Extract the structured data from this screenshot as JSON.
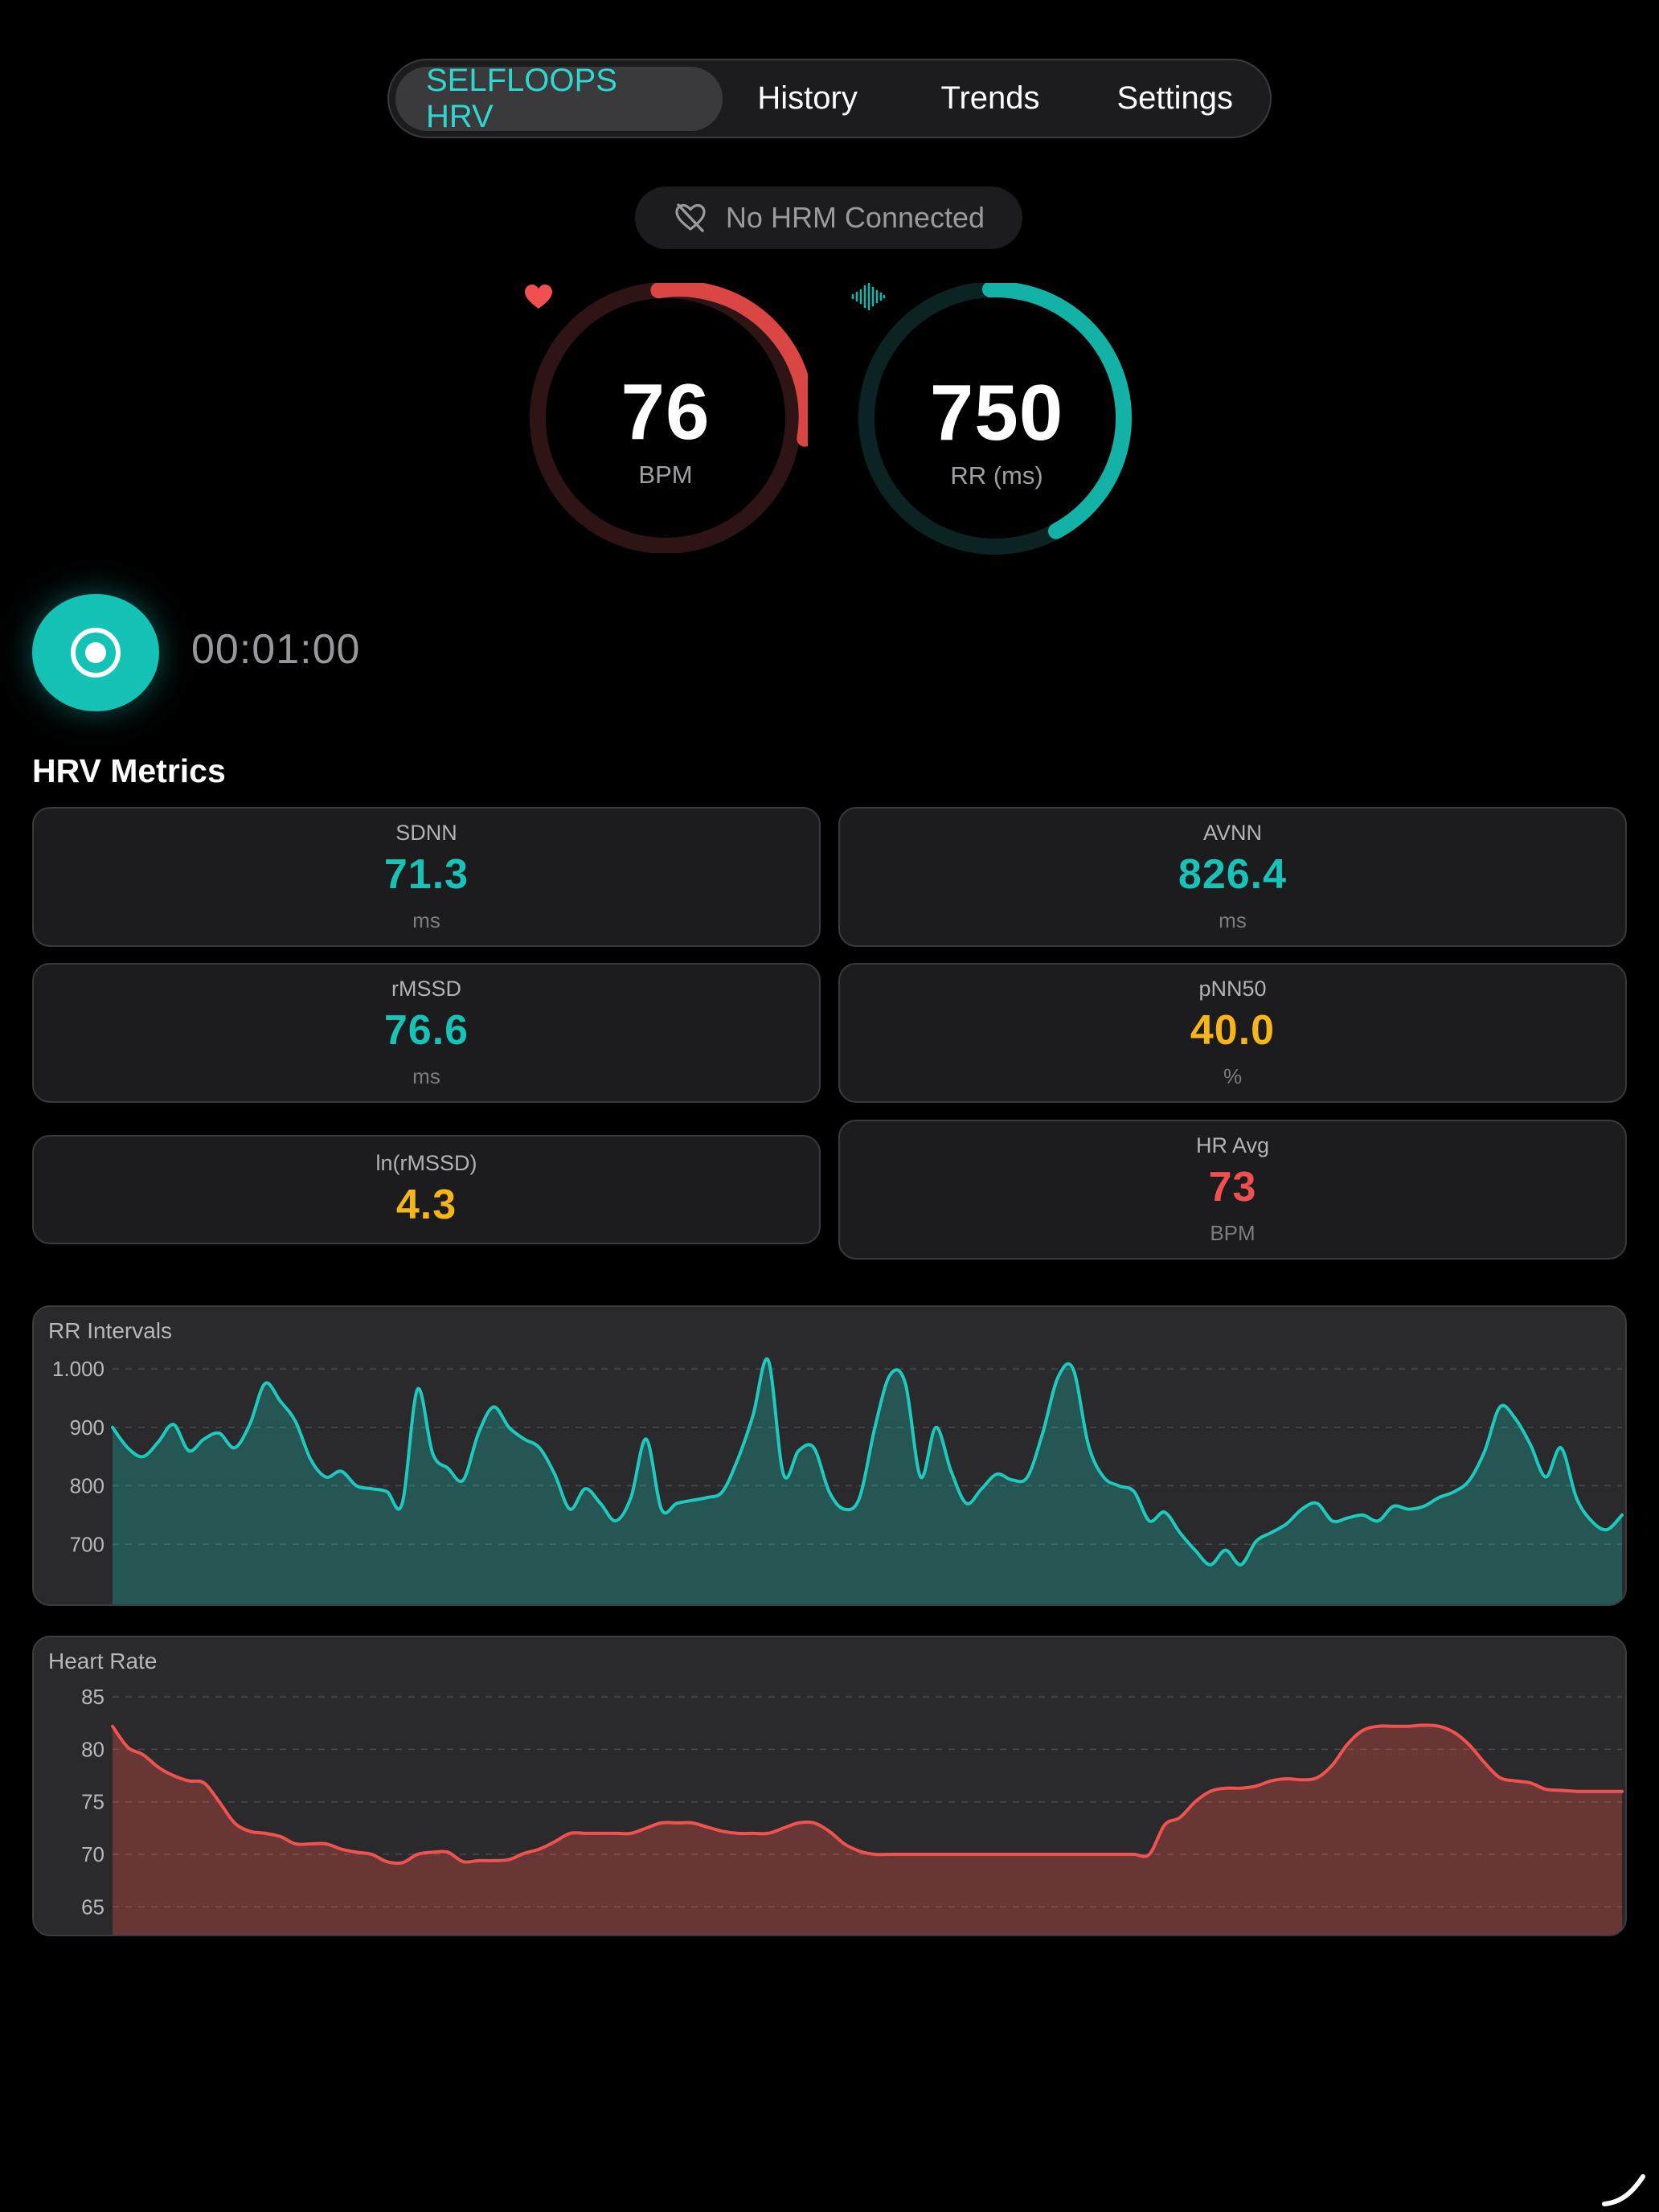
{
  "nav": {
    "tabs": [
      {
        "label": "SELFLOOPS HRV",
        "active": true
      },
      {
        "label": "History",
        "active": false
      },
      {
        "label": "Trends",
        "active": false
      },
      {
        "label": "Settings",
        "active": false
      }
    ]
  },
  "hrm_status": {
    "icon": "heart-slash-icon",
    "label": "No HRM Connected"
  },
  "gauges": {
    "bpm": {
      "icon": "heart-icon",
      "value": "76",
      "unit": "BPM",
      "color": "#f0504f"
    },
    "rr": {
      "icon": "waveform-icon",
      "value": "750",
      "unit": "RR (ms)",
      "color": "#16b5aa"
    }
  },
  "record": {
    "icon": "record-icon",
    "timer": "00:01:00"
  },
  "metrics": {
    "title": "HRV Metrics",
    "cards": [
      {
        "label": "SDNN",
        "value": "71.3",
        "unit": "ms",
        "color": "#19c2b6"
      },
      {
        "label": "AVNN",
        "value": "826.4",
        "unit": "ms",
        "color": "#19c2b6"
      },
      {
        "label": "rMSSD",
        "value": "76.6",
        "unit": "ms",
        "color": "#19c2b6"
      },
      {
        "label": "pNN50",
        "value": "40.0",
        "unit": "%",
        "color": "#f7b51c"
      },
      {
        "label": "ln(rMSSD)",
        "value": "4.3",
        "unit": "",
        "color": "#f7b51c"
      },
      {
        "label": "HR Avg",
        "value": "73",
        "unit": "BPM",
        "color": "#f0504f"
      }
    ]
  },
  "chart_data": [
    {
      "type": "area",
      "title": "RR Intervals",
      "ylim": [
        600,
        1040
      ],
      "yticks": [
        700,
        800,
        900,
        1000
      ],
      "ytick_labels": [
        "700",
        "800",
        "900",
        "1.000"
      ],
      "grid": true,
      "color": "#1ec9bd",
      "values": [
        900,
        865,
        850,
        875,
        905,
        860,
        880,
        890,
        865,
        905,
        975,
        945,
        910,
        845,
        815,
        825,
        800,
        795,
        790,
        770,
        965,
        855,
        830,
        810,
        890,
        935,
        900,
        880,
        865,
        820,
        760,
        795,
        770,
        740,
        780,
        880,
        760,
        770,
        775,
        780,
        790,
        845,
        920,
        1015,
        820,
        860,
        865,
        790,
        760,
        780,
        900,
        990,
        975,
        815,
        900,
        825,
        770,
        795,
        820,
        810,
        815,
        890,
        985,
        1000,
        870,
        815,
        800,
        790,
        740,
        755,
        720,
        690,
        665,
        690,
        665,
        705,
        720,
        735,
        760,
        770,
        740,
        745,
        750,
        740,
        765,
        760,
        765,
        780,
        790,
        810,
        860,
        935,
        915,
        870,
        815,
        865,
        780,
        740,
        725,
        750
      ]
    },
    {
      "type": "area",
      "title": "Heart Rate",
      "ylim": [
        62.5,
        87
      ],
      "yticks": [
        65,
        70,
        75,
        80,
        85
      ],
      "ytick_labels": [
        "65",
        "70",
        "75",
        "80",
        "85"
      ],
      "grid": true,
      "color": "#f0524f",
      "values": [
        82.2,
        80.2,
        79.5,
        78.3,
        77.5,
        77,
        76.8,
        75,
        73,
        72.2,
        72,
        71.7,
        71,
        71,
        71,
        70.5,
        70.2,
        70,
        69.3,
        69.2,
        70,
        70.2,
        70.2,
        69.3,
        69.4,
        69.4,
        69.5,
        70.1,
        70.5,
        71.2,
        72,
        72,
        72,
        72,
        72,
        72.5,
        73,
        73,
        73,
        72.6,
        72.2,
        72,
        72,
        72,
        72.5,
        73,
        73,
        72.2,
        71,
        70.3,
        70,
        70,
        70,
        70,
        70,
        70,
        70,
        70,
        70,
        70,
        70,
        70,
        70,
        70,
        70,
        70,
        70,
        70,
        70,
        72.8,
        73.5,
        75,
        76,
        76.3,
        76.3,
        76.5,
        77,
        77.2,
        77.1,
        77.3,
        78.5,
        80.5,
        81.8,
        82.2,
        82.2,
        82.2,
        82.3,
        82.2,
        81.6,
        80.4,
        78.7,
        77.3,
        77,
        76.8,
        76.2,
        76.1,
        76,
        76,
        76,
        76
      ]
    }
  ]
}
